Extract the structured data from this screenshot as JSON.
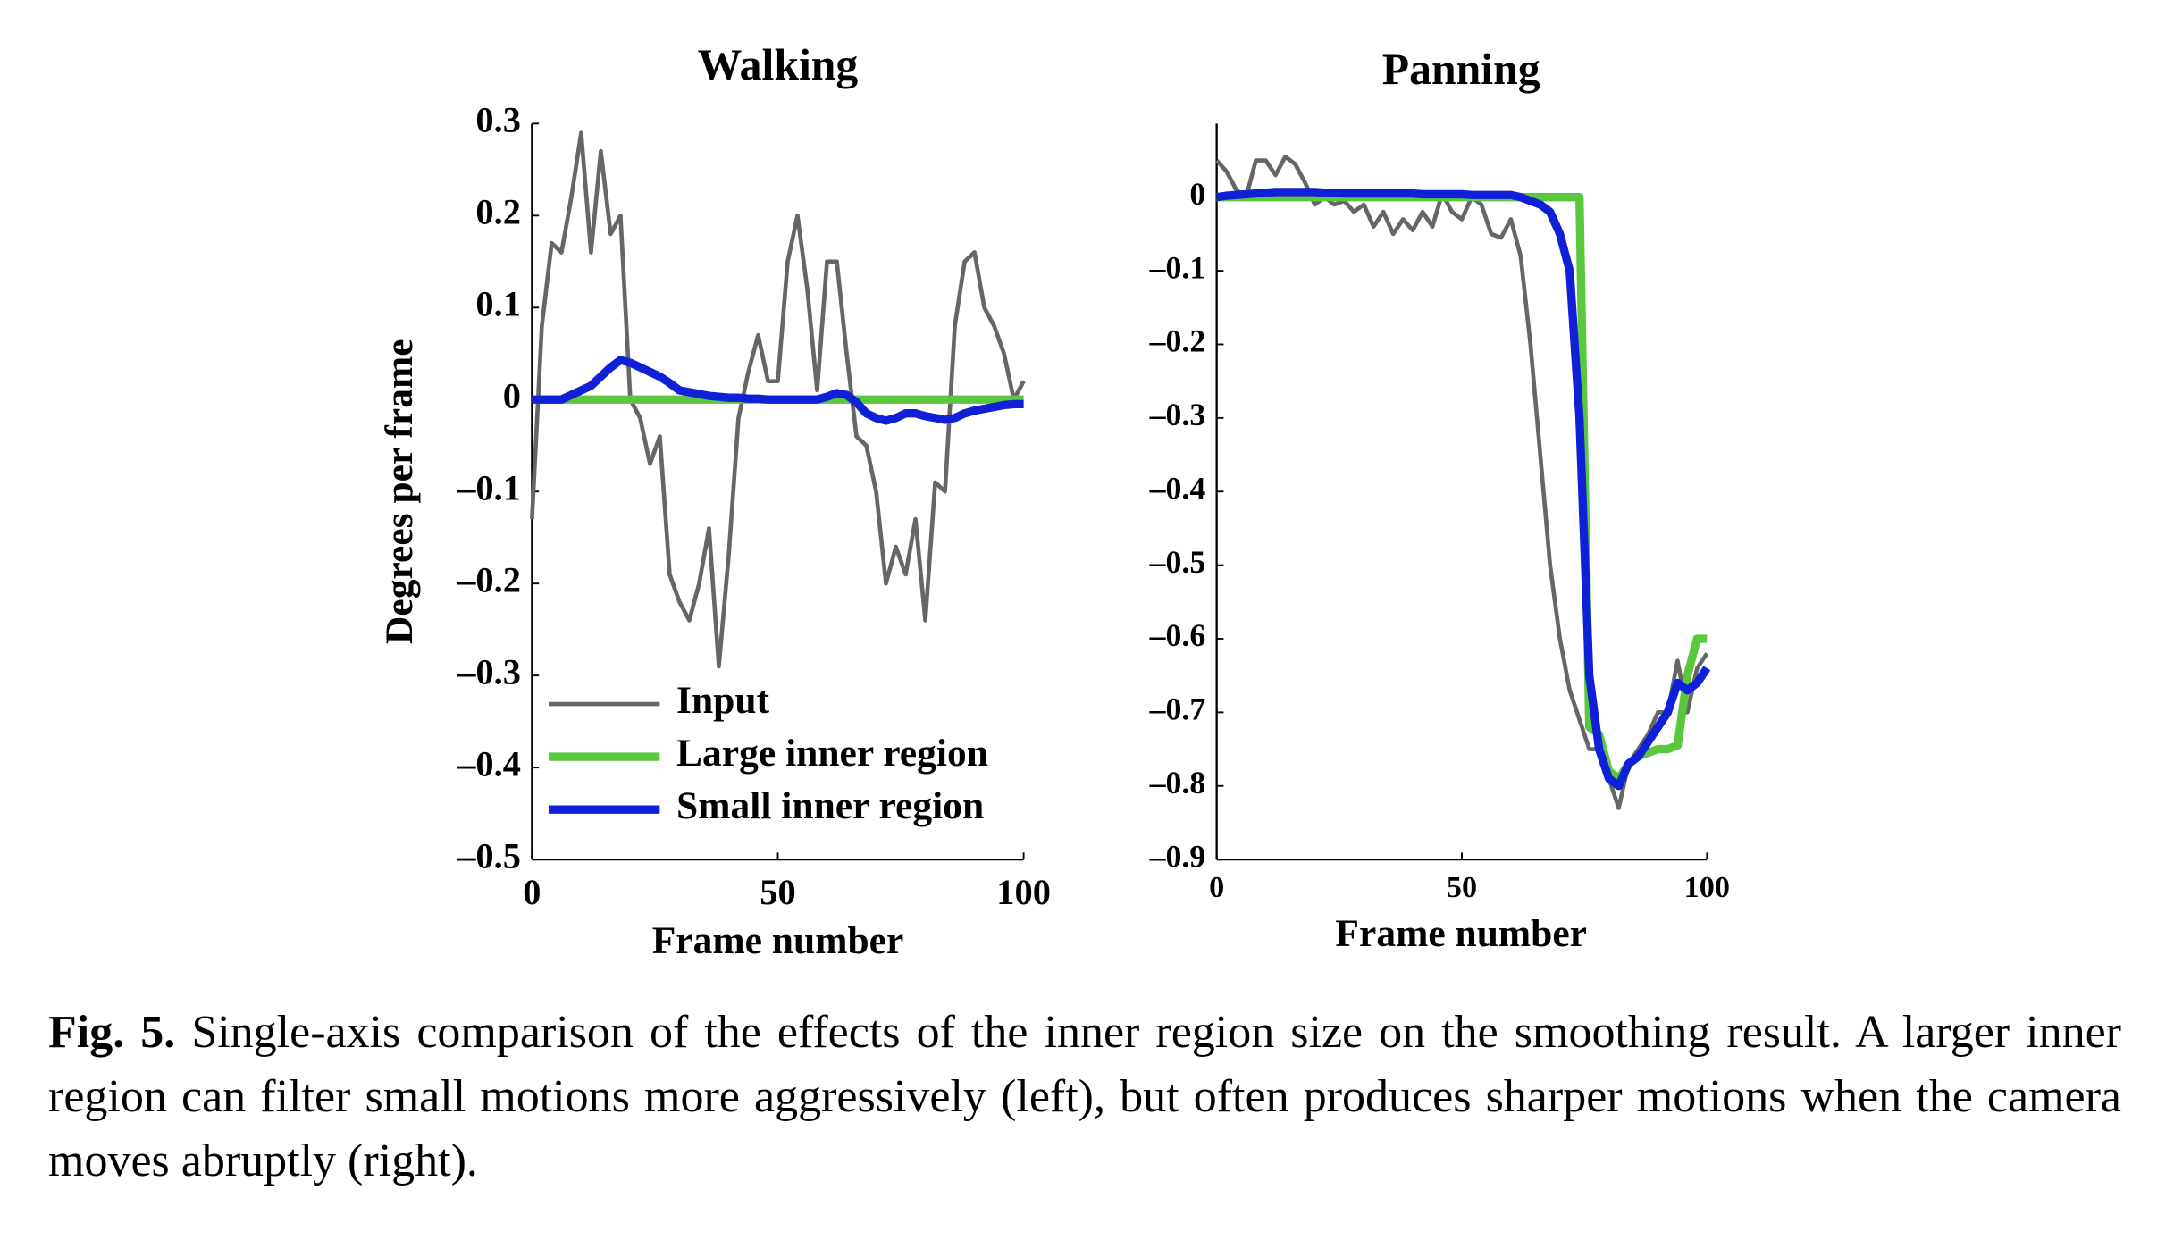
{
  "chart_data": [
    {
      "type": "line",
      "title": "Walking",
      "x_label": "Frame number",
      "y_label": "Degrees per frame",
      "x": [
        0,
        2,
        4,
        6,
        8,
        10,
        12,
        14,
        16,
        18,
        20,
        22,
        24,
        26,
        28,
        30,
        32,
        34,
        36,
        38,
        40,
        42,
        44,
        46,
        48,
        50,
        52,
        54,
        56,
        58,
        60,
        62,
        64,
        66,
        68,
        70,
        72,
        74,
        76,
        78,
        80,
        82,
        84,
        86,
        88,
        90,
        92,
        94,
        96,
        98,
        100
      ],
      "series": [
        {
          "name": "Input",
          "color": "#666666",
          "values": [
            -0.13,
            0.08,
            0.17,
            0.16,
            0.22,
            0.29,
            0.16,
            0.27,
            0.18,
            0.2,
            0.0,
            -0.02,
            -0.07,
            -0.04,
            -0.19,
            -0.22,
            -0.24,
            -0.2,
            -0.14,
            -0.29,
            -0.17,
            -0.02,
            0.03,
            0.07,
            0.02,
            0.02,
            0.15,
            0.2,
            0.12,
            0.01,
            0.15,
            0.15,
            0.05,
            -0.04,
            -0.05,
            -0.1,
            -0.2,
            -0.16,
            -0.19,
            -0.13,
            -0.24,
            -0.09,
            -0.1,
            0.08,
            0.15,
            0.16,
            0.1,
            0.08,
            0.05,
            0.0,
            0.02
          ]
        },
        {
          "name": "Large inner region",
          "color": "#5ac83c",
          "values": [
            0,
            0,
            0,
            0,
            0,
            0,
            0,
            0,
            0,
            0,
            0,
            0,
            0,
            0,
            0,
            0,
            0,
            0,
            0,
            0,
            0,
            0,
            0,
            0,
            0,
            0,
            0,
            0,
            0,
            0,
            0,
            0,
            0,
            0,
            0,
            0,
            0,
            0,
            0,
            0,
            0,
            0,
            0,
            0,
            0,
            0,
            0,
            0,
            0,
            0,
            0
          ]
        },
        {
          "name": "Small inner region",
          "color": "#1020d8",
          "values": [
            0,
            0,
            0,
            0,
            0.005,
            0.01,
            0.015,
            0.025,
            0.035,
            0.043,
            0.04,
            0.035,
            0.03,
            0.025,
            0.018,
            0.01,
            0.008,
            0.006,
            0.004,
            0.003,
            0.002,
            0.002,
            0.001,
            0.001,
            0,
            0,
            0,
            0,
            0,
            0,
            0.003,
            0.007,
            0.005,
            -0.003,
            -0.015,
            -0.02,
            -0.023,
            -0.02,
            -0.015,
            -0.015,
            -0.018,
            -0.02,
            -0.022,
            -0.02,
            -0.015,
            -0.012,
            -0.01,
            -0.008,
            -0.006,
            -0.005,
            -0.005
          ]
        }
      ],
      "xlim": [
        0,
        100
      ],
      "xticks": [
        0,
        50,
        100
      ],
      "ylim": [
        -0.5,
        0.3
      ],
      "yticks": [
        0.3,
        0.2,
        0.1,
        0,
        {
          "value": -0.1,
          "label": "–0.1"
        },
        {
          "value": -0.2,
          "label": "–0.2"
        },
        {
          "value": -0.3,
          "label": "–0.3"
        },
        {
          "value": -0.4,
          "label": "–0.4"
        },
        {
          "value": -0.5,
          "label": "–0.5"
        }
      ],
      "legend": "lower left"
    },
    {
      "type": "line",
      "title": "Panning",
      "x_label": "Frame number",
      "x": [
        0,
        2,
        4,
        6,
        8,
        10,
        12,
        14,
        16,
        18,
        20,
        22,
        24,
        26,
        28,
        30,
        32,
        34,
        36,
        38,
        40,
        42,
        44,
        46,
        48,
        50,
        52,
        54,
        56,
        58,
        60,
        62,
        64,
        66,
        68,
        70,
        72,
        74,
        76,
        78,
        80,
        82,
        84,
        86,
        88,
        90,
        92,
        94,
        96,
        98,
        100
      ],
      "series": [
        {
          "color": "#666666",
          "values": [
            0.05,
            0.035,
            0.01,
            0.0,
            0.05,
            0.05,
            0.03,
            0.055,
            0.045,
            0.02,
            -0.01,
            0.0,
            -0.01,
            -0.005,
            -0.02,
            -0.01,
            -0.04,
            -0.02,
            -0.05,
            -0.03,
            -0.045,
            -0.02,
            -0.04,
            0.005,
            -0.02,
            -0.03,
            0.0,
            -0.01,
            -0.05,
            -0.055,
            -0.03,
            -0.08,
            -0.2,
            -0.35,
            -0.5,
            -0.6,
            -0.67,
            -0.71,
            -0.75,
            -0.75,
            -0.79,
            -0.83,
            -0.77,
            -0.75,
            -0.73,
            -0.7,
            -0.7,
            -0.63,
            -0.7,
            -0.64,
            -0.62
          ]
        },
        {
          "color": "#5ac83c",
          "values": [
            0,
            0,
            0,
            0,
            0,
            0,
            0,
            0,
            0,
            0,
            0,
            0,
            0,
            0,
            0,
            0,
            0,
            0,
            0,
            0,
            0,
            0,
            0,
            0,
            0,
            0,
            0,
            0,
            0,
            0,
            0,
            0,
            0,
            0,
            0,
            0,
            0,
            0,
            -0.72,
            -0.73,
            -0.78,
            -0.79,
            -0.77,
            -0.76,
            -0.755,
            -0.75,
            -0.75,
            -0.745,
            -0.65,
            -0.6,
            -0.6
          ]
        },
        {
          "color": "#1020d8",
          "values": [
            0,
            0.002,
            0.003,
            0.004,
            0.005,
            0.006,
            0.007,
            0.007,
            0.007,
            0.007,
            0.007,
            0.006,
            0.006,
            0.005,
            0.005,
            0.005,
            0.005,
            0.005,
            0.005,
            0.005,
            0.005,
            0.004,
            0.004,
            0.004,
            0.004,
            0.004,
            0.003,
            0.003,
            0.003,
            0.003,
            0.003,
            0,
            -0.005,
            -0.01,
            -0.02,
            -0.05,
            -0.1,
            -0.3,
            -0.65,
            -0.75,
            -0.79,
            -0.8,
            -0.77,
            -0.76,
            -0.74,
            -0.72,
            -0.7,
            -0.66,
            -0.67,
            -0.66,
            -0.64
          ]
        }
      ],
      "xlim": [
        0,
        100
      ],
      "xticks": [
        0,
        50,
        100
      ],
      "ylim": [
        -0.9,
        0.1
      ],
      "yticks": [
        0,
        {
          "value": -0.1,
          "label": "–0.1"
        },
        {
          "value": -0.2,
          "label": "–0.2"
        },
        {
          "value": -0.3,
          "label": "–0.3"
        },
        {
          "value": -0.4,
          "label": "–0.4"
        },
        {
          "value": -0.5,
          "label": "–0.5"
        },
        {
          "value": -0.6,
          "label": "–0.6"
        },
        {
          "value": -0.7,
          "label": "–0.7"
        },
        {
          "value": -0.8,
          "label": "–0.8"
        },
        {
          "value": -0.9,
          "label": "–0.9"
        }
      ]
    }
  ],
  "caption": {
    "label": "Fig. 5.",
    "text": "Single-axis comparison of the effects of the inner region size on the smoothing result. A larger inner region can filter small motions more aggressively (left), but often produces sharper motions when the camera moves abruptly (right)."
  }
}
